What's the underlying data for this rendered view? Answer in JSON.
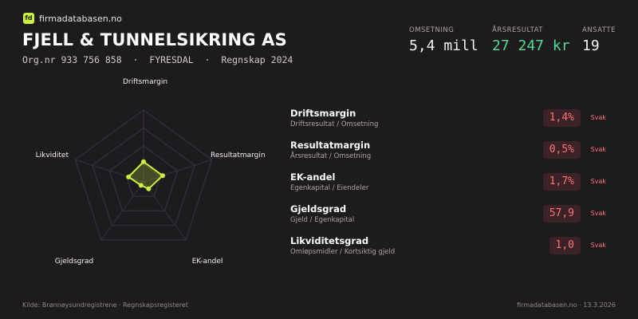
{
  "brand": {
    "mark": "fd",
    "name": "firmadatabasen.no"
  },
  "company": {
    "name": "FJELL & TUNNELSIKRING AS",
    "orgnr": "Org.nr 933 756 858",
    "location": "FYRESDAL",
    "report": "Regnskap 2024",
    "separator": "·"
  },
  "stats": [
    {
      "label": "OMSETNING",
      "value": "5,4 mill",
      "color": "#f4f1f2"
    },
    {
      "label": "ÅRSRESULTAT",
      "value": "27 247 kr",
      "color": "#4fdc8f"
    },
    {
      "label": "ANSATTE",
      "value": "19",
      "color": "#f4f1f2"
    }
  ],
  "radar": {
    "axes": [
      "Driftsmargin",
      "Resultatmargin",
      "EK-andel",
      "Gjeldsgrad",
      "Likviditet"
    ],
    "scores": [
      0.28,
      0.28,
      0.12,
      0.06,
      0.22
    ],
    "rings": 4,
    "accent": "#c9f23a"
  },
  "metrics": [
    {
      "name": "Driftsmargin",
      "desc": "Driftsresultat / Omsetning",
      "value": "1,4%",
      "rating": "Svak"
    },
    {
      "name": "Resultatmargin",
      "desc": "Årsresultat / Omsetning",
      "value": "0,5%",
      "rating": "Svak"
    },
    {
      "name": "EK-andel",
      "desc": "Egenkapital / Eiendeler",
      "value": "1,7%",
      "rating": "Svak"
    },
    {
      "name": "Gjeldsgrad",
      "desc": "Gjeld / Egenkapital",
      "value": "57,9",
      "rating": "Svak"
    },
    {
      "name": "Likviditetsgrad",
      "desc": "Omløpsmidler / Kortsiktig gjeld",
      "value": "1,0",
      "rating": "Svak"
    }
  ],
  "footer": {
    "source": "Kilde: Brønnøysundregistrene · Regnskapsregisteret",
    "site_date": "firmadatabasen.no · 13.3.2026"
  }
}
